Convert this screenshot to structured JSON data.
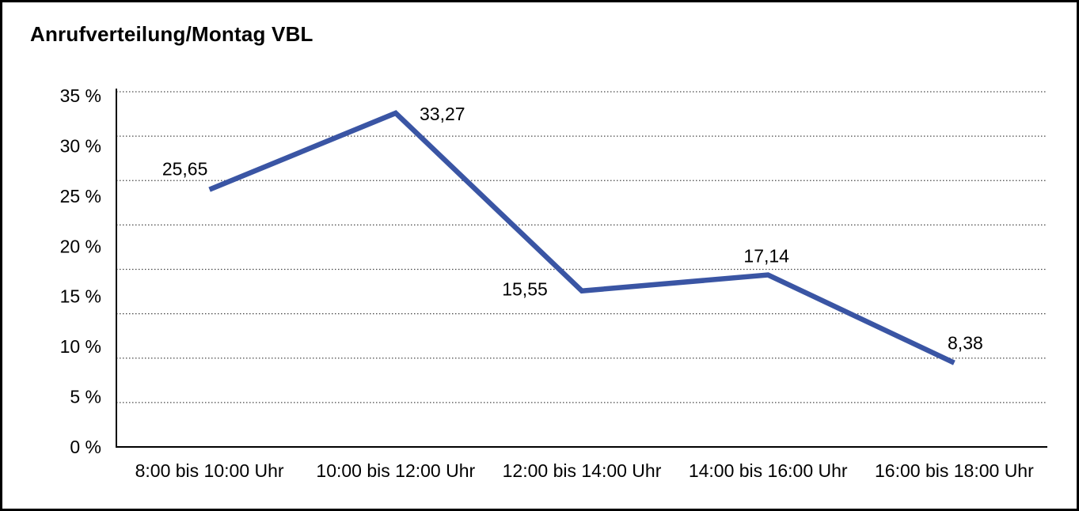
{
  "window": {
    "background_color": "#FFFFFF",
    "border_color": "#000000"
  },
  "chart_data": {
    "type": "line",
    "title": "Anrufverteilung/Montag VBL",
    "categories": [
      "8:00 bis 10:00 Uhr",
      "10:00 bis 12:00 Uhr",
      "12:00 bis 14:00 Uhr",
      "14:00 bis 16:00 Uhr",
      "16:00 bis 18:00 Uhr"
    ],
    "values": [
      25.65,
      33.27,
      15.55,
      17.14,
      8.38
    ],
    "value_labels": [
      "25,65",
      "33,27",
      "15,55",
      "17,14",
      "8,38"
    ],
    "y_tick_labels": [
      "35 %",
      "30 %",
      "25 %",
      "20 %",
      "15 %",
      "10 %",
      "5 %",
      "0 %"
    ],
    "ylim": [
      0,
      35
    ],
    "y_tick_step": 5,
    "xlabel": "",
    "ylabel": "",
    "grid": "horizontal dotted",
    "legend_position": "none",
    "line_color": "#3A55A4",
    "text_color": "#000000",
    "grid_color": "#474747",
    "axis_color": "#000000"
  }
}
